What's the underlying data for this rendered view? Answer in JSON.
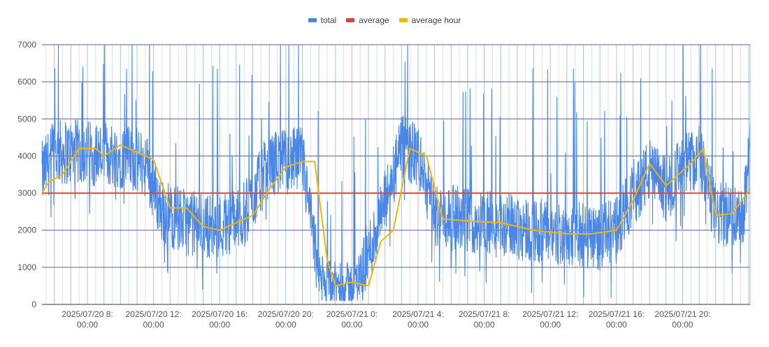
{
  "chart_data": {
    "type": "line",
    "title": "",
    "xlabel": "",
    "ylabel": "",
    "ylim": [
      0,
      7000
    ],
    "y_ticks": [
      "0",
      "1000",
      "2000",
      "3000",
      "4000",
      "5000",
      "6000",
      "7000"
    ],
    "x_tick_labels": [
      {
        "line1": "2025/07/20 8:",
        "line2": "00:00"
      },
      {
        "line1": "2025/07/20 12:",
        "line2": "00:00"
      },
      {
        "line1": "2025/07/20 16:",
        "line2": "00:00"
      },
      {
        "line1": "2025/07/20 20:",
        "line2": "00:00"
      },
      {
        "line1": "2025/07/21 0:",
        "line2": "00:00"
      },
      {
        "line1": "2025/07/21 4:",
        "line2": "00:00"
      },
      {
        "line1": "2025/07/21 8:",
        "line2": "00:00"
      },
      {
        "line1": "2025/07/21 12:",
        "line2": "00:00"
      },
      {
        "line1": "2025/07/21 16:",
        "line2": "00:00"
      },
      {
        "line1": "2025/07/21 20:",
        "line2": "00:00"
      }
    ],
    "x_range": [
      "2025/07/20 5:15",
      "2025/07/22 0:05"
    ],
    "x_tick_times": [
      "2025/07/20 8:00",
      "2025/07/20 12:00",
      "2025/07/20 16:00",
      "2025/07/20 20:00",
      "2025/07/21 0:00",
      "2025/07/21 4:00",
      "2025/07/21 8:00",
      "2025/07/21 12:00",
      "2025/07/21 16:00",
      "2025/07/21 20:00"
    ],
    "grid": true,
    "legend_position": "top",
    "series": [
      {
        "name": "total",
        "color": "#4a86e8",
        "note": "high-frequency noisy series",
        "profile_x": [
          "2025/07/20 5:15",
          "2025/07/20 6:00",
          "2025/07/20 8:00",
          "2025/07/20 10:00",
          "2025/07/20 11:30",
          "2025/07/20 12:30",
          "2025/07/20 14:00",
          "2025/07/20 16:00",
          "2025/07/20 17:30",
          "2025/07/20 19:00",
          "2025/07/20 21:00",
          "2025/07/20 22:00",
          "2025/07/20 23:00",
          "2025/07/21 0:00",
          "2025/07/21 0:30",
          "2025/07/21 1:30",
          "2025/07/21 3:00",
          "2025/07/21 4:00",
          "2025/07/21 5:00",
          "2025/07/21 8:00",
          "2025/07/21 10:00",
          "2025/07/21 12:00",
          "2025/07/21 13:30",
          "2025/07/21 15:00",
          "2025/07/21 16:00",
          "2025/07/21 17:00",
          "2025/07/21 18:00",
          "2025/07/21 19:00",
          "2025/07/21 20:00",
          "2025/07/21 21:00",
          "2025/07/21 22:00",
          "2025/07/21 23:00",
          "2025/07/21 23:40",
          "2025/07/22 0:05"
        ],
        "profile_y": [
          3500,
          4100,
          4100,
          4000,
          3800,
          2500,
          2200,
          2100,
          2400,
          3800,
          3900,
          700,
          500,
          500,
          800,
          2000,
          4200,
          4000,
          2400,
          2200,
          2100,
          1900,
          1900,
          1800,
          2000,
          3000,
          3600,
          3100,
          3700,
          4000,
          2400,
          2400,
          2500,
          4200
        ]
      },
      {
        "name": "average",
        "color": "#db4437",
        "values": [
          3000,
          3000
        ]
      },
      {
        "name": "average hour",
        "color": "#f4b400",
        "x": [
          "2025/07/20 5:15",
          "2025/07/20 5:40",
          "2025/07/20 6:30",
          "2025/07/20 7:30",
          "2025/07/20 8:30",
          "2025/07/20 9:00",
          "2025/07/20 10:00",
          "2025/07/20 11:00",
          "2025/07/20 12:00",
          "2025/07/20 13:00",
          "2025/07/20 14:00",
          "2025/07/20 15:00",
          "2025/07/20 16:00",
          "2025/07/20 17:00",
          "2025/07/20 18:00",
          "2025/07/20 19:00",
          "2025/07/20 20:00",
          "2025/07/20 21:00",
          "2025/07/20 21:45",
          "2025/07/20 22:30",
          "2025/07/20 23:00",
          "2025/07/21 0:00",
          "2025/07/21 1:00",
          "2025/07/21 1:45",
          "2025/07/21 2:30",
          "2025/07/21 3:30",
          "2025/07/21 4:30",
          "2025/07/21 5:30",
          "2025/07/21 7:00",
          "2025/07/21 9:00",
          "2025/07/21 11:00",
          "2025/07/21 13:00",
          "2025/07/21 14:30",
          "2025/07/21 16:00",
          "2025/07/21 17:00",
          "2025/07/21 18:00",
          "2025/07/21 19:00",
          "2025/07/21 20:30",
          "2025/07/21 21:15",
          "2025/07/21 22:00",
          "2025/07/21 23:00",
          "2025/07/22 0:05"
        ],
        "values": [
          3000,
          3300,
          3500,
          4200,
          4200,
          4000,
          4300,
          4100,
          3900,
          2600,
          2600,
          2100,
          2000,
          2200,
          2400,
          3100,
          3700,
          3850,
          3850,
          1200,
          500,
          600,
          500,
          1700,
          2000,
          4200,
          4000,
          2300,
          2250,
          2200,
          2000,
          1900,
          1900,
          2000,
          2800,
          3800,
          3200,
          3800,
          4200,
          2400,
          2450,
          3100
        ]
      }
    ]
  }
}
